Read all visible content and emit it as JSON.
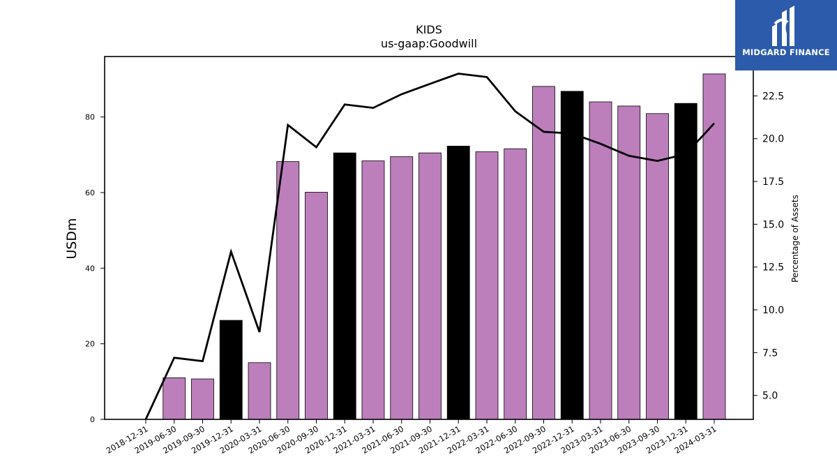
{
  "chart_data": {
    "type": "bar",
    "title": "KIDS",
    "subtitle": "us-gaap:Goodwill",
    "ylabel": "USDm",
    "y2label": "Percentage of Assets",
    "ylim": [
      0,
      96
    ],
    "y2lim": [
      3.6,
      24.8
    ],
    "yticks": [
      0,
      20,
      40,
      60,
      80
    ],
    "y2ticks": [
      5.0,
      7.5,
      10.0,
      12.5,
      15.0,
      17.5,
      20.0,
      22.5
    ],
    "categories": [
      "2018-12-31",
      "2019-06-30",
      "2019-09-30",
      "2019-12-31",
      "2020-03-31",
      "2020-06-30",
      "2020-09-30",
      "2020-12-31",
      "2021-03-31",
      "2021-06-30",
      "2021-09-30",
      "2021-12-31",
      "2022-03-31",
      "2022-06-30",
      "2022-09-30",
      "2022-12-31",
      "2023-03-31",
      "2023-06-30",
      "2023-09-30",
      "2023-12-31",
      "2024-03-31"
    ],
    "series": [
      {
        "values": [
          0,
          11.0,
          10.7,
          26.2,
          15.0,
          68.2,
          60.1,
          70.5,
          68.4,
          69.5,
          70.5,
          72.3,
          70.8,
          71.6,
          88.1,
          86.8,
          84.0,
          82.9,
          80.9,
          83.6,
          91.4
        ]
      },
      {
        "values": [
          3.6,
          7.2,
          7.0,
          13.4,
          8.7,
          20.8,
          19.5,
          22.0,
          21.8,
          22.6,
          23.2,
          23.8,
          23.6,
          21.6,
          20.4,
          20.3,
          19.7,
          19.0,
          18.7,
          19.1,
          20.9
        ],
        "axis": "right"
      }
    ],
    "bar_colors": {
      "quarter": "#bc7fbc",
      "year_end": "#000000",
      "edge": "#000000"
    },
    "line_color": "#000000"
  },
  "logo": {
    "text": "MIDGARD FINANCE",
    "background": "#2c5bab"
  }
}
